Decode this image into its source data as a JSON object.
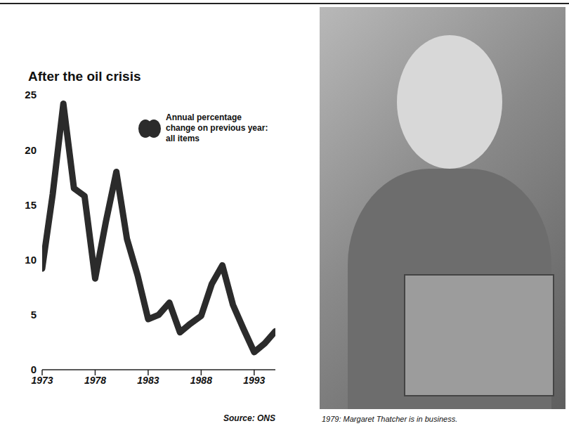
{
  "chart_data": {
    "type": "line",
    "title": "After the oil crisis",
    "x": [
      1973,
      1974,
      1975,
      1976,
      1977,
      1978,
      1979,
      1980,
      1981,
      1982,
      1983,
      1984,
      1985,
      1986,
      1987,
      1988,
      1989,
      1990,
      1991,
      1992,
      1993,
      1994,
      1995
    ],
    "series": [
      {
        "name": "Annual percentage change on previous year: all items",
        "color": "#2b2b2b",
        "values": [
          9.2,
          16.0,
          24.2,
          16.5,
          15.8,
          8.3,
          13.4,
          18.0,
          11.9,
          8.6,
          4.6,
          5.0,
          6.1,
          3.4,
          4.2,
          4.9,
          7.8,
          9.5,
          5.9,
          3.7,
          1.6,
          2.4,
          3.5
        ]
      }
    ],
    "xlim": [
      1973,
      1995
    ],
    "xticks": [
      1973,
      1978,
      1983,
      1988,
      1993
    ],
    "ylim": [
      0,
      25
    ],
    "yticks": [
      0,
      5,
      10,
      15,
      20,
      25
    ],
    "grid": false,
    "annotations": [
      "Source: ONS"
    ]
  },
  "photo": {
    "caption": "1979: Margaret Thatcher is in business."
  }
}
